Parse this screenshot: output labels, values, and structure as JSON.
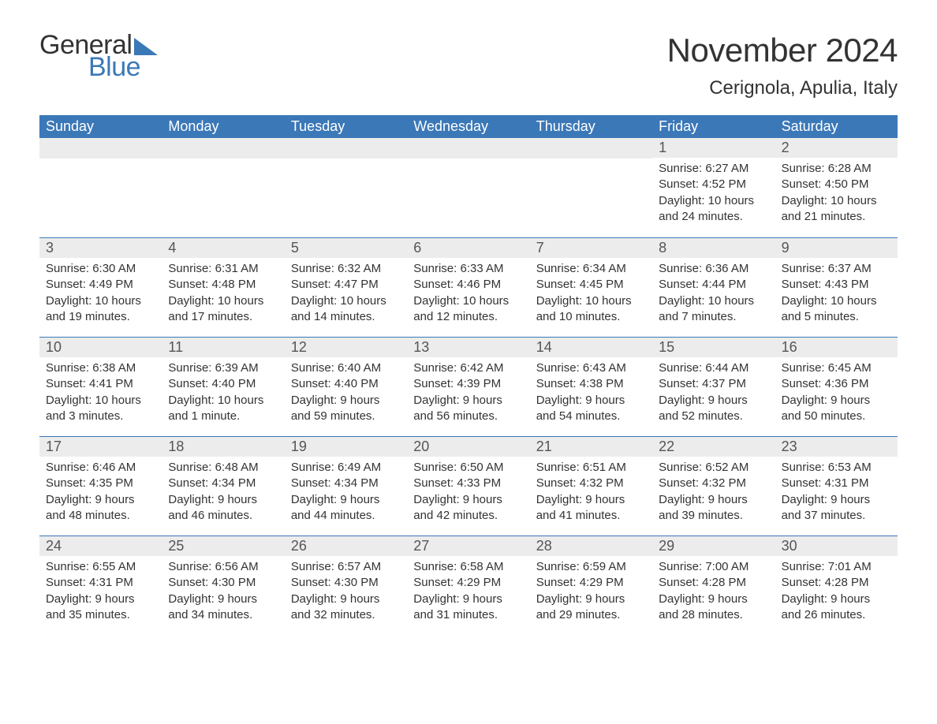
{
  "branding": {
    "logo_text_1": "General",
    "logo_text_2": "Blue",
    "logo_text_color_1": "#333333",
    "logo_text_color_2": "#3b78b8",
    "logo_triangle_color": "#3b78b8"
  },
  "title": {
    "month_year": "November 2024",
    "location": "Cerignola, Apulia, Italy"
  },
  "style": {
    "header_bg": "#3b78b8",
    "header_text_color": "#ffffff",
    "day_band_bg": "#ececec",
    "row_border_color": "#3b78b8",
    "body_text_color": "#333333",
    "page_bg": "#ffffff",
    "title_fontsize": 42,
    "location_fontsize": 24,
    "day_header_fontsize": 18,
    "day_number_fontsize": 18,
    "details_fontsize": 15
  },
  "day_headers": [
    "Sunday",
    "Monday",
    "Tuesday",
    "Wednesday",
    "Thursday",
    "Friday",
    "Saturday"
  ],
  "weeks": [
    [
      {
        "day": "",
        "sunrise": "",
        "sunset": "",
        "daylight": ""
      },
      {
        "day": "",
        "sunrise": "",
        "sunset": "",
        "daylight": ""
      },
      {
        "day": "",
        "sunrise": "",
        "sunset": "",
        "daylight": ""
      },
      {
        "day": "",
        "sunrise": "",
        "sunset": "",
        "daylight": ""
      },
      {
        "day": "",
        "sunrise": "",
        "sunset": "",
        "daylight": ""
      },
      {
        "day": "1",
        "sunrise": "Sunrise: 6:27 AM",
        "sunset": "Sunset: 4:52 PM",
        "daylight": "Daylight: 10 hours and 24 minutes."
      },
      {
        "day": "2",
        "sunrise": "Sunrise: 6:28 AM",
        "sunset": "Sunset: 4:50 PM",
        "daylight": "Daylight: 10 hours and 21 minutes."
      }
    ],
    [
      {
        "day": "3",
        "sunrise": "Sunrise: 6:30 AM",
        "sunset": "Sunset: 4:49 PM",
        "daylight": "Daylight: 10 hours and 19 minutes."
      },
      {
        "day": "4",
        "sunrise": "Sunrise: 6:31 AM",
        "sunset": "Sunset: 4:48 PM",
        "daylight": "Daylight: 10 hours and 17 minutes."
      },
      {
        "day": "5",
        "sunrise": "Sunrise: 6:32 AM",
        "sunset": "Sunset: 4:47 PM",
        "daylight": "Daylight: 10 hours and 14 minutes."
      },
      {
        "day": "6",
        "sunrise": "Sunrise: 6:33 AM",
        "sunset": "Sunset: 4:46 PM",
        "daylight": "Daylight: 10 hours and 12 minutes."
      },
      {
        "day": "7",
        "sunrise": "Sunrise: 6:34 AM",
        "sunset": "Sunset: 4:45 PM",
        "daylight": "Daylight: 10 hours and 10 minutes."
      },
      {
        "day": "8",
        "sunrise": "Sunrise: 6:36 AM",
        "sunset": "Sunset: 4:44 PM",
        "daylight": "Daylight: 10 hours and 7 minutes."
      },
      {
        "day": "9",
        "sunrise": "Sunrise: 6:37 AM",
        "sunset": "Sunset: 4:43 PM",
        "daylight": "Daylight: 10 hours and 5 minutes."
      }
    ],
    [
      {
        "day": "10",
        "sunrise": "Sunrise: 6:38 AM",
        "sunset": "Sunset: 4:41 PM",
        "daylight": "Daylight: 10 hours and 3 minutes."
      },
      {
        "day": "11",
        "sunrise": "Sunrise: 6:39 AM",
        "sunset": "Sunset: 4:40 PM",
        "daylight": "Daylight: 10 hours and 1 minute."
      },
      {
        "day": "12",
        "sunrise": "Sunrise: 6:40 AM",
        "sunset": "Sunset: 4:40 PM",
        "daylight": "Daylight: 9 hours and 59 minutes."
      },
      {
        "day": "13",
        "sunrise": "Sunrise: 6:42 AM",
        "sunset": "Sunset: 4:39 PM",
        "daylight": "Daylight: 9 hours and 56 minutes."
      },
      {
        "day": "14",
        "sunrise": "Sunrise: 6:43 AM",
        "sunset": "Sunset: 4:38 PM",
        "daylight": "Daylight: 9 hours and 54 minutes."
      },
      {
        "day": "15",
        "sunrise": "Sunrise: 6:44 AM",
        "sunset": "Sunset: 4:37 PM",
        "daylight": "Daylight: 9 hours and 52 minutes."
      },
      {
        "day": "16",
        "sunrise": "Sunrise: 6:45 AM",
        "sunset": "Sunset: 4:36 PM",
        "daylight": "Daylight: 9 hours and 50 minutes."
      }
    ],
    [
      {
        "day": "17",
        "sunrise": "Sunrise: 6:46 AM",
        "sunset": "Sunset: 4:35 PM",
        "daylight": "Daylight: 9 hours and 48 minutes."
      },
      {
        "day": "18",
        "sunrise": "Sunrise: 6:48 AM",
        "sunset": "Sunset: 4:34 PM",
        "daylight": "Daylight: 9 hours and 46 minutes."
      },
      {
        "day": "19",
        "sunrise": "Sunrise: 6:49 AM",
        "sunset": "Sunset: 4:34 PM",
        "daylight": "Daylight: 9 hours and 44 minutes."
      },
      {
        "day": "20",
        "sunrise": "Sunrise: 6:50 AM",
        "sunset": "Sunset: 4:33 PM",
        "daylight": "Daylight: 9 hours and 42 minutes."
      },
      {
        "day": "21",
        "sunrise": "Sunrise: 6:51 AM",
        "sunset": "Sunset: 4:32 PM",
        "daylight": "Daylight: 9 hours and 41 minutes."
      },
      {
        "day": "22",
        "sunrise": "Sunrise: 6:52 AM",
        "sunset": "Sunset: 4:32 PM",
        "daylight": "Daylight: 9 hours and 39 minutes."
      },
      {
        "day": "23",
        "sunrise": "Sunrise: 6:53 AM",
        "sunset": "Sunset: 4:31 PM",
        "daylight": "Daylight: 9 hours and 37 minutes."
      }
    ],
    [
      {
        "day": "24",
        "sunrise": "Sunrise: 6:55 AM",
        "sunset": "Sunset: 4:31 PM",
        "daylight": "Daylight: 9 hours and 35 minutes."
      },
      {
        "day": "25",
        "sunrise": "Sunrise: 6:56 AM",
        "sunset": "Sunset: 4:30 PM",
        "daylight": "Daylight: 9 hours and 34 minutes."
      },
      {
        "day": "26",
        "sunrise": "Sunrise: 6:57 AM",
        "sunset": "Sunset: 4:30 PM",
        "daylight": "Daylight: 9 hours and 32 minutes."
      },
      {
        "day": "27",
        "sunrise": "Sunrise: 6:58 AM",
        "sunset": "Sunset: 4:29 PM",
        "daylight": "Daylight: 9 hours and 31 minutes."
      },
      {
        "day": "28",
        "sunrise": "Sunrise: 6:59 AM",
        "sunset": "Sunset: 4:29 PM",
        "daylight": "Daylight: 9 hours and 29 minutes."
      },
      {
        "day": "29",
        "sunrise": "Sunrise: 7:00 AM",
        "sunset": "Sunset: 4:28 PM",
        "daylight": "Daylight: 9 hours and 28 minutes."
      },
      {
        "day": "30",
        "sunrise": "Sunrise: 7:01 AM",
        "sunset": "Sunset: 4:28 PM",
        "daylight": "Daylight: 9 hours and 26 minutes."
      }
    ]
  ]
}
